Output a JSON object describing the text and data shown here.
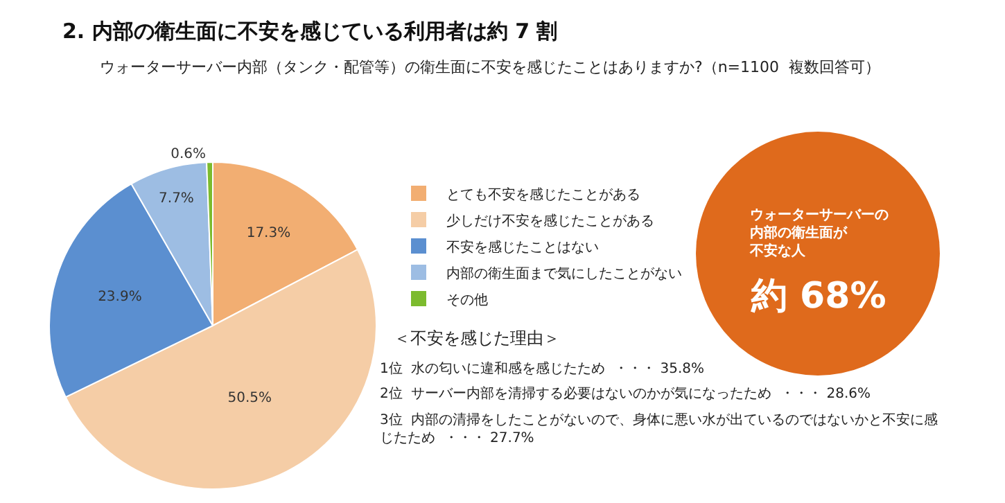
{
  "chart_data": {
    "type": "pie",
    "title": "2. 内部の衛生面に不安を感じている利用者は約 7 割",
    "subtitle": "ウォーターサーバー内部（タンク・配管等）の衛生面に不安を感じたことはありますか?（n=1100  複数回答可）",
    "categories": [
      "とても不安を感じたことがある",
      "少しだけ不安を感じたことがある",
      "不安を感じたことはない",
      "内部の衛生面まで気にしたことがない",
      "その他"
    ],
    "values": [
      17.3,
      50.5,
      23.9,
      7.7,
      0.6
    ],
    "colors": [
      "#f2ae72",
      "#f5cda6",
      "#5b8fd0",
      "#9dbde3",
      "#7cbb2e"
    ],
    "value_labels": [
      "17.3%",
      "50.5%",
      "23.9%",
      "7.7%",
      "0.6%"
    ],
    "legend": "right",
    "annotations": [
      "＜不安を感じた理由＞",
      "1位  水の匂いに違和感を感じたため  ・・・ 35.8%",
      "2位  サーバー内部を清掃する必要はないのかが気になったため  ・・・ 28.6%",
      "3位  内部の清掃をしたことがないので、身体に悪い水が出ているのではないかと不安に感じたため  ・・・ 27.7%",
      "ウォーターサーバーの内部の衛生面が不安な人",
      "約 68%"
    ]
  }
}
